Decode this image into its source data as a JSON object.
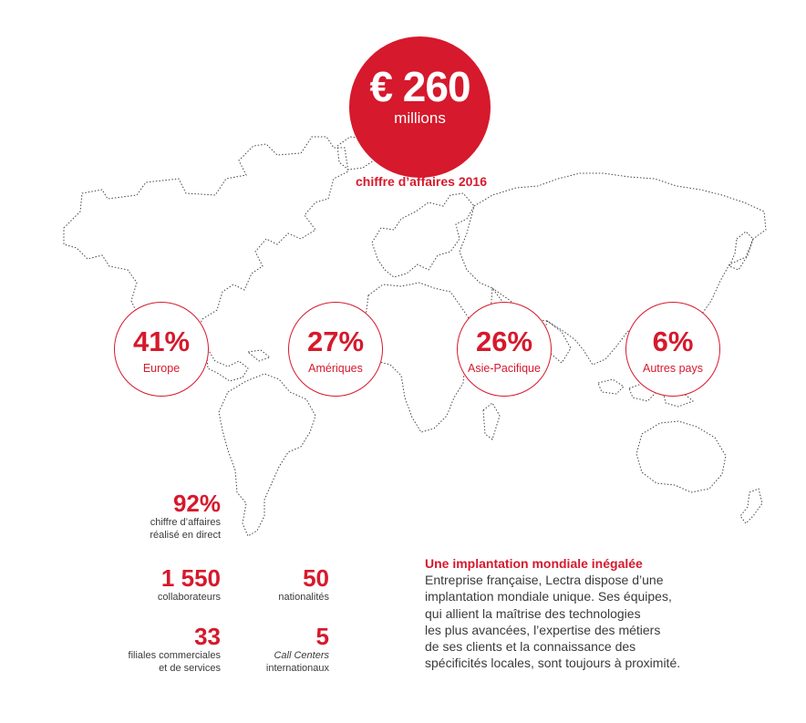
{
  "revenue": {
    "amount": "€ 260",
    "unit": "millions",
    "caption": "chiffre d’affaires 2016"
  },
  "regions": [
    {
      "pct": "41%",
      "label": "Europe"
    },
    {
      "pct": "27%",
      "label": "Amériques"
    },
    {
      "pct": "26%",
      "label": "Asie-Pacifique"
    },
    {
      "pct": "6%",
      "label": "Autres pays"
    }
  ],
  "stats": {
    "direct": {
      "value": "92%",
      "line1": "chiffre d’affaires",
      "line2": "réalisé en direct"
    },
    "employees": {
      "value": "1 550",
      "line1": "collaborateurs"
    },
    "nationalities": {
      "value": "50",
      "line1": "nationalités"
    },
    "subsidiaries": {
      "value": "33",
      "line1": "filiales commerciales",
      "line2": "et de services"
    },
    "call_centers": {
      "value": "5",
      "line1": "Call Centers",
      "line2": "internationaux"
    }
  },
  "presence": {
    "title": "Une implantation mondiale inégalée",
    "lines": [
      "Entreprise française, Lectra dispose d’une",
      "implantation mondiale unique. Ses équipes,",
      "qui allient la maîtrise des technologies",
      "les plus avancées, l’expertise des métiers",
      "de ses clients et la connaissance des",
      "spécificités locales, sont toujours à proximité."
    ]
  },
  "colors": {
    "accent": "#d6192c",
    "text": "#3a3a3a",
    "map_outline": "#444444"
  }
}
